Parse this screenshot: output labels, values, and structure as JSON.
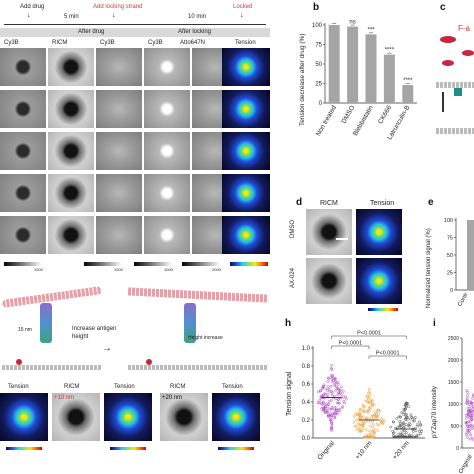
{
  "panel_a": {
    "timeline": {
      "add_drug": "Add drug",
      "add_locking_strand": "Add locking strand",
      "locked": "Locked",
      "t1": "5 min",
      "t2": "10 min"
    },
    "stage_labels": {
      "after_drug": "After drug",
      "after_locking": "After locking"
    },
    "column_headers": [
      "Cy3B",
      "RICM",
      "Cy3B",
      "Cy3B",
      "Atto647N",
      "Tension"
    ],
    "colorbar_ticks": {
      "a1": "1000",
      "a2": "1000",
      "a3": "1000",
      "a4": "2000"
    }
  },
  "panel_b": {
    "letter": "b",
    "chart_data": {
      "type": "bar",
      "categories": [
        "Non treated",
        "DMSO",
        "Blebbistatin",
        "CK666",
        "Latrunculin-B"
      ],
      "values": [
        100,
        98,
        88,
        62,
        23
      ],
      "significance": [
        "",
        "ns",
        "***",
        "****",
        "****"
      ],
      "ylabel": "Tension decrease after drug (%)",
      "ylim": [
        0,
        100
      ],
      "yticks": [
        "0",
        "25",
        "50",
        "75",
        "100"
      ],
      "bar_color": "#a5a5a5"
    }
  },
  "panel_c": {
    "letter": "c",
    "fragment_label": "F-a"
  },
  "panel_d": {
    "letter": "d",
    "col_headers": [
      "RICM",
      "Tension"
    ],
    "row_labels": [
      "DMSO",
      "AX-024"
    ]
  },
  "panel_e": {
    "letter": "e",
    "ylabel": "Normalized tension signal (%)",
    "yticks": [
      "0",
      "25",
      "50",
      "75",
      "100"
    ],
    "xlabel_fragment": "Contr"
  },
  "panel_g": {
    "arrow_label": "Increase antigen height",
    "left_scale": "15 nm",
    "right_label": "Height increase",
    "tile_labels": [
      "Tension",
      "RICM",
      "Tension",
      "RICM",
      "Tension"
    ],
    "ricm_tags": [
      "+10 nm",
      "+20 nm"
    ]
  },
  "panel_h": {
    "letter": "h",
    "chart_data": {
      "type": "scatter",
      "categories": [
        "Original",
        "+10 nm",
        "+20 nm"
      ],
      "medians": [
        0.45,
        0.2,
        0.1
      ],
      "ylabel": "Tension signal",
      "yticks": [
        "0.0",
        "0.2",
        "0.4",
        "0.6",
        "0.8",
        "1.0"
      ],
      "ylim": [
        0,
        1
      ],
      "comparisons": [
        "P<0.0001",
        "P<0.0001",
        "P<0.0001"
      ],
      "colors": [
        "#b04fc2",
        "#f0a23a",
        "#5a5a5a"
      ]
    }
  },
  "panel_i": {
    "letter": "i",
    "ylabel": "pYZap70 intensity",
    "yticks": [
      "0",
      "500",
      "1000",
      "1500",
      "2000",
      "2500"
    ],
    "xlabel_fragment": "Original"
  }
}
